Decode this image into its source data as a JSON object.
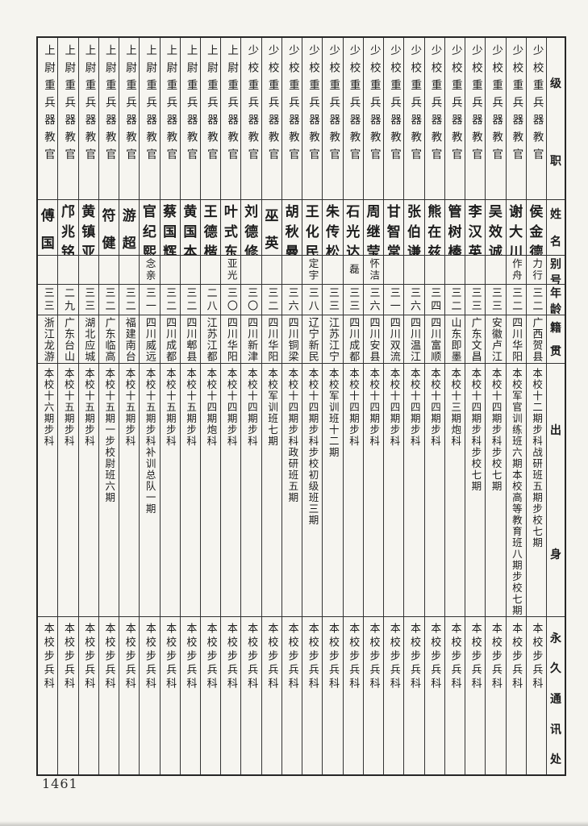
{
  "page": {
    "number": "1461"
  },
  "colors": {
    "paper": "#f5f4ef",
    "ink": "#1c1c1c",
    "rule": "#333333"
  },
  "table": {
    "headers": {
      "rank": "级职",
      "name": "姓名",
      "byname": "别号",
      "age": "年龄",
      "native": "籍贯",
      "origin": "出身",
      "address": "永久通讯处"
    },
    "rows": [
      {
        "rank": "少校重兵器教官",
        "name": "侯金德",
        "byname": "力行",
        "age": "三二",
        "native": "广西贺县",
        "origin": "本校十二期步科战研班五期步校七期",
        "address": "本校步兵科"
      },
      {
        "rank": "少校重兵器教官",
        "name": "谢大川",
        "byname": "作舟",
        "age": "三二",
        "native": "四川华阳",
        "origin": "本校军官训练班六期本校高等教育班八期步校七期",
        "address": "本校步兵科"
      },
      {
        "rank": "少校重兵器教官",
        "name": "吴效诚",
        "byname": "",
        "age": "三三",
        "native": "安徽卢江",
        "origin": "本校十四期步科步校七期",
        "address": "本校步兵科"
      },
      {
        "rank": "少校重兵器教官",
        "name": "李汉英",
        "byname": "",
        "age": "三三",
        "native": "广东文昌",
        "origin": "本校十四期步科步校七期",
        "address": "本校步兵科"
      },
      {
        "rank": "少校重兵器教官",
        "name": "管树榛",
        "byname": "",
        "age": "三二",
        "native": "山东即墨",
        "origin": "本校十三期炮科",
        "address": "本校步兵科"
      },
      {
        "rank": "少校重兵器教官",
        "name": "熊在兹",
        "byname": "",
        "age": "三四",
        "native": "四川富顺",
        "origin": "本校十四期步科",
        "address": "本校步兵科"
      },
      {
        "rank": "少校重兵器教官",
        "name": "张伯谦",
        "byname": "",
        "age": "三六",
        "native": "四川温江",
        "origin": "本校十四期步科",
        "address": "本校步兵科"
      },
      {
        "rank": "少校重兵器教官",
        "name": "甘智常",
        "byname": "",
        "age": "三一",
        "native": "四川双流",
        "origin": "本校十四期步科",
        "address": "本校步兵科"
      },
      {
        "rank": "少校重兵器教官",
        "name": "周继莹",
        "byname": "怀洁",
        "age": "三六",
        "native": "四川安县",
        "origin": "本校十四期步科",
        "address": "本校步兵科"
      },
      {
        "rank": "少校重兵器教官",
        "name": "石光达",
        "byname": "磊",
        "age": "三三",
        "native": "四川成都",
        "origin": "本校十四期步科",
        "address": "本校步兵科"
      },
      {
        "rank": "少校重兵器教官",
        "name": "朱传松",
        "byname": "",
        "age": "三三",
        "native": "江苏江宁",
        "origin": "本校军训班十二期",
        "address": "本校步兵科"
      },
      {
        "rank": "少校重兵器教官",
        "name": "王化民",
        "byname": "定宇",
        "age": "三八",
        "native": "辽宁新民",
        "origin": "本校十四期步科步校初级班三期",
        "address": "本校步兵科"
      },
      {
        "rank": "少校重兵器教官",
        "name": "胡秋曼",
        "byname": "",
        "age": "三六",
        "native": "四川铜梁",
        "origin": "本校十四期步科政研班五期",
        "address": "本校步兵科"
      },
      {
        "rank": "少校重兵器教官",
        "name": "巫英",
        "byname": "",
        "age": "三二",
        "native": "四川华阳",
        "origin": "本校军训班七期",
        "address": "本校步兵科"
      },
      {
        "rank": "少校重兵器教官",
        "name": "刘德修",
        "byname": "",
        "age": "三〇",
        "native": "四川新津",
        "origin": "本校十四期步科",
        "address": "本校步兵科"
      },
      {
        "rank": "上尉重兵器教官",
        "name": "叶式东",
        "byname": "亚光",
        "age": "三〇",
        "native": "四川华阳",
        "origin": "本校十四期步科",
        "address": "本校步兵科"
      },
      {
        "rank": "上尉重兵器教官",
        "name": "王德楷",
        "byname": "",
        "age": "二八",
        "native": "江苏江都",
        "origin": "本校十四期炮科",
        "address": "本校步兵科"
      },
      {
        "rank": "上尉重兵器教官",
        "name": "黄国本",
        "byname": "",
        "age": "三二",
        "native": "四川郫县",
        "origin": "本校十五期步科",
        "address": "本校步兵科"
      },
      {
        "rank": "上尉重兵器教官",
        "name": "蔡国辉",
        "byname": "",
        "age": "三二",
        "native": "四川成都",
        "origin": "本校十五期步科",
        "address": "本校步兵科"
      },
      {
        "rank": "上尉重兵器教官",
        "name": "官纪熙",
        "byname": "念亲",
        "age": "三一",
        "native": "四川威远",
        "origin": "本校十五期步科补训总队一期",
        "address": "本校步兵科"
      },
      {
        "rank": "上尉重兵器教官",
        "name": "游超",
        "byname": "",
        "age": "三二",
        "native": "福建南台",
        "origin": "本校十五期步科",
        "address": "本校步兵科"
      },
      {
        "rank": "上尉重兵器教官",
        "name": "符健",
        "byname": "",
        "age": "三二",
        "native": "广东临高",
        "origin": "本校十五期一步校尉班六期",
        "address": "本校步兵科"
      },
      {
        "rank": "上尉重兵器教官",
        "name": "黄镇亚",
        "byname": "",
        "age": "三三",
        "native": "湖北应城",
        "origin": "本校十五期步科",
        "address": "本校步兵科"
      },
      {
        "rank": "上尉重兵器教官",
        "name": "邝兆铭",
        "byname": "",
        "age": "二九",
        "native": "广东台山",
        "origin": "本校十五期步科",
        "address": "本校步兵科"
      },
      {
        "rank": "上尉重兵器教官",
        "name": "傅国",
        "byname": "",
        "age": "三三",
        "native": "浙江龙游",
        "origin": "本校十六期步科",
        "address": "本校步兵科"
      }
    ]
  }
}
